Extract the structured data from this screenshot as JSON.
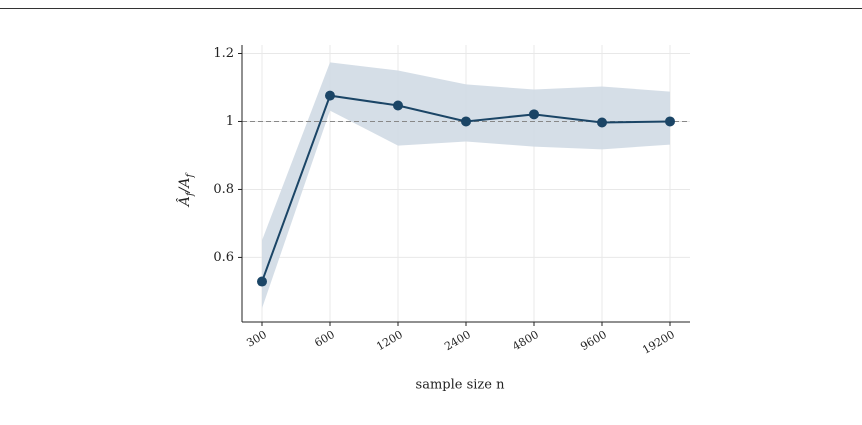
{
  "chart_data": {
    "type": "line",
    "categories": [
      "300",
      "600",
      "1200",
      "2400",
      "4800",
      "9600",
      "19200"
    ],
    "series": [
      {
        "color": "#1b4566",
        "values": [
          0.529,
          1.076,
          1.047,
          1.0,
          1.021,
          0.997,
          1.0
        ],
        "lower": [
          0.45,
          1.032,
          0.929,
          0.941,
          0.926,
          0.918,
          0.932
        ],
        "upper": [
          0.65,
          1.174,
          1.15,
          1.109,
          1.094,
          1.103,
          1.088
        ],
        "band_color": "#d0dae4"
      }
    ],
    "xlabel": "sample size n",
    "ylabel": "Â_f/A_f",
    "ylim": [
      0.41,
      1.225
    ],
    "yticks": [
      0.6,
      0.8,
      1.0,
      1.2
    ],
    "hline": 1.0,
    "grid": true
  }
}
